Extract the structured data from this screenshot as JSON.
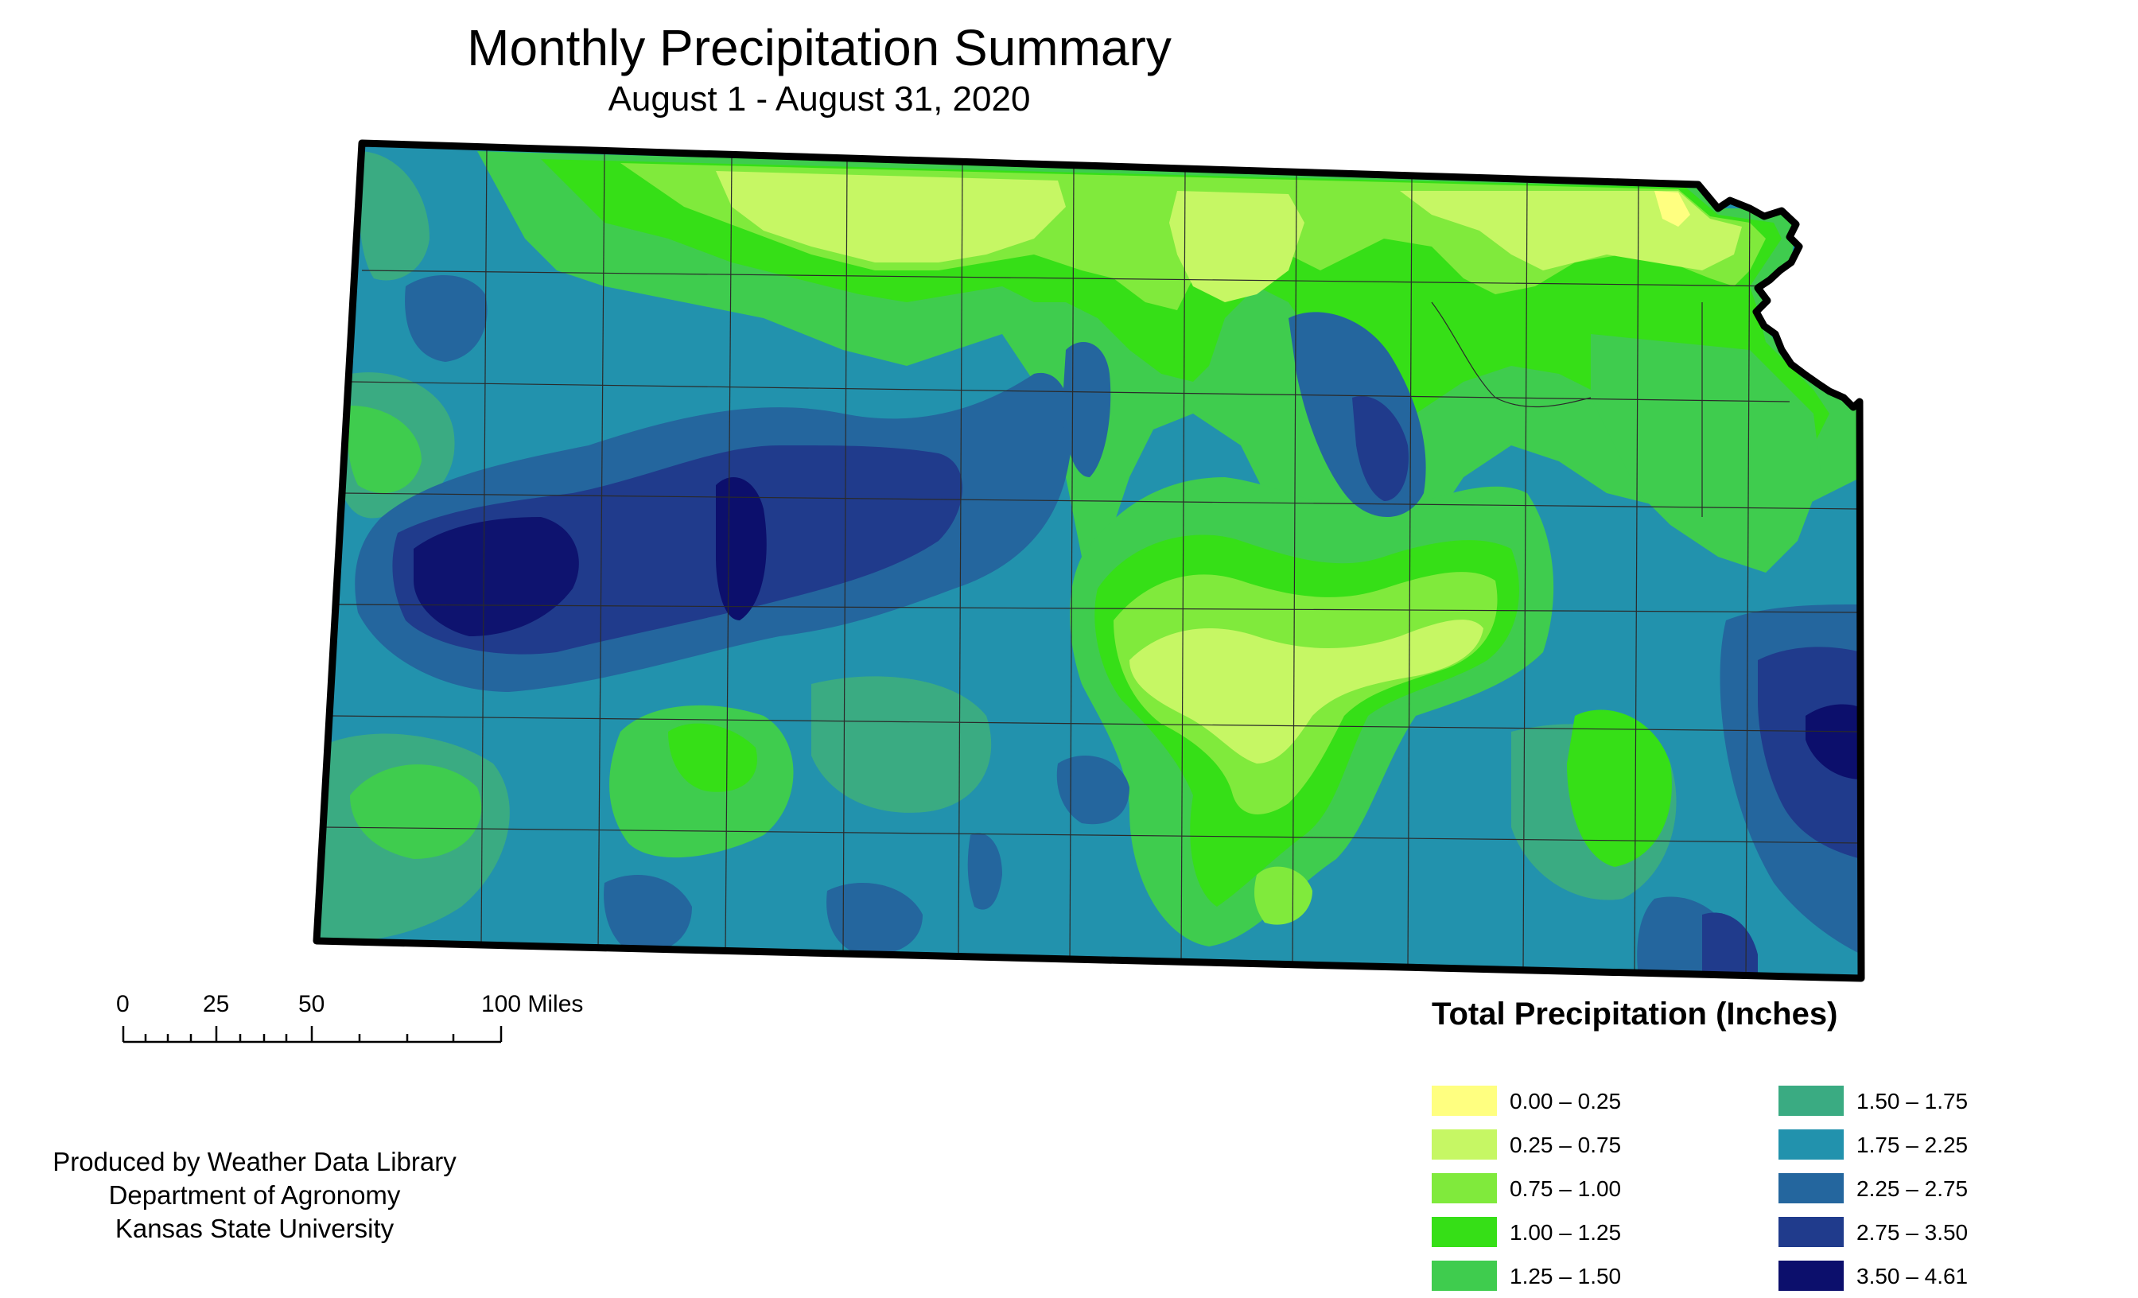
{
  "title": "Monthly Precipitation Summary",
  "subtitle": "August 1 - August 31, 2020",
  "scale_bar": {
    "labels": [
      "0",
      "25",
      "50",
      "100 Miles"
    ]
  },
  "credit": {
    "line1": "Produced by Weather Data Library",
    "line2": "Department of Agronomy",
    "line3": "Kansas State University"
  },
  "legend": {
    "title": "Total Precipitation (Inches)",
    "items": [
      {
        "label": "0.00 – 0.25",
        "color": "#ffff80"
      },
      {
        "label": "0.25 – 0.75",
        "color": "#c6f764"
      },
      {
        "label": "0.75 – 1.00",
        "color": "#80ea3c"
      },
      {
        "label": "1.00 – 1.25",
        "color": "#36df17"
      },
      {
        "label": "1.25 – 1.50",
        "color": "#3fcc4e"
      },
      {
        "label": "1.50 – 1.75",
        "color": "#3aab82"
      },
      {
        "label": "1.75 – 2.25",
        "color": "#2292ad"
      },
      {
        "label": "2.25 – 2.75",
        "color": "#24669e"
      },
      {
        "label": "2.75 – 3.50",
        "color": "#203b8c"
      },
      {
        "label": "3.50 – 4.61",
        "color": "#0c0f6c"
      }
    ]
  }
}
